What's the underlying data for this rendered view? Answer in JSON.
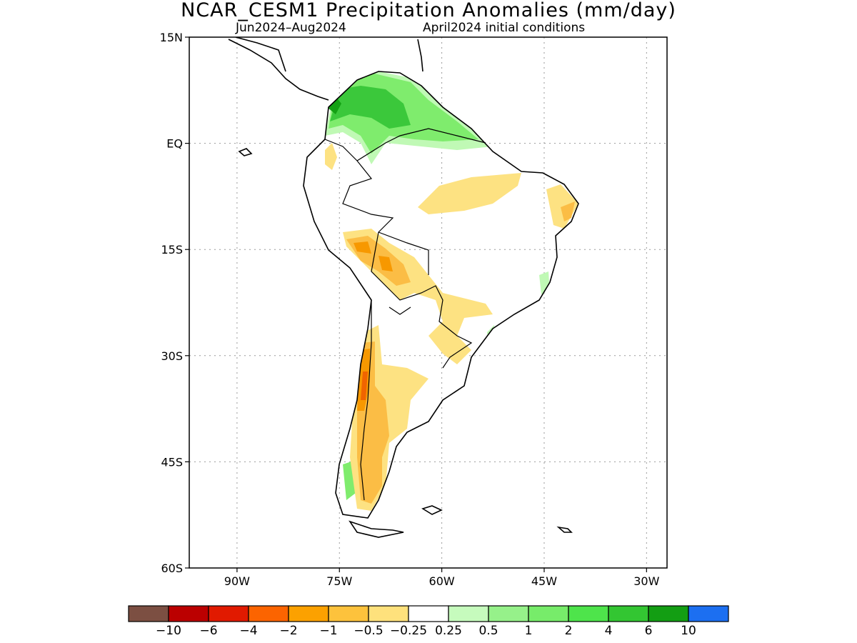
{
  "title": "NCAR_CESM1 Precipitation Anomalies (mm/day)",
  "subtitle_period": "Jun2024–Aug2024",
  "subtitle_ic": "April2024 initial conditions",
  "map": {
    "lon_range": [
      -97,
      -27
    ],
    "lat_range": [
      -60,
      15
    ],
    "lat_ticks": [
      {
        "value": 15,
        "label": "15N"
      },
      {
        "value": 0,
        "label": "EQ"
      },
      {
        "value": -15,
        "label": "15S"
      },
      {
        "value": -30,
        "label": "30S"
      },
      {
        "value": -45,
        "label": "45S"
      },
      {
        "value": -60,
        "label": "60S"
      }
    ],
    "lon_ticks": [
      {
        "value": -90,
        "label": "90W"
      },
      {
        "value": -75,
        "label": "75W"
      },
      {
        "value": -60,
        "label": "60W"
      },
      {
        "value": -45,
        "label": "45W"
      },
      {
        "value": -30,
        "label": "30W"
      }
    ],
    "grid": true,
    "colors": {
      "land_outline": "#000000",
      "wet_light": "#c0f9b5",
      "wet_medium": "#7fec6d",
      "wet_strong": "#3bc83b",
      "wet_extreme": "#13a113",
      "dry_light": "#fde282",
      "dry_medium": "#fbbd45",
      "dry_strong": "#f79800",
      "dry_extreme": "#f06400"
    }
  },
  "colorbar": {
    "colors": [
      "#7c4f42",
      "#bb0000",
      "#e11a00",
      "#fc6400",
      "#fca100",
      "#fdc23c",
      "#fee17c",
      "#ffffff",
      "#c6fbbd",
      "#96f18a",
      "#77ec6a",
      "#4ee44b",
      "#33c632",
      "#139e13",
      "#1c6ff1"
    ],
    "labels": [
      "−10",
      "−6",
      "−4",
      "−2",
      "−1",
      "−0.5",
      "−0.25",
      "0.25",
      "0.5",
      "1",
      "2",
      "4",
      "6",
      "10"
    ]
  }
}
